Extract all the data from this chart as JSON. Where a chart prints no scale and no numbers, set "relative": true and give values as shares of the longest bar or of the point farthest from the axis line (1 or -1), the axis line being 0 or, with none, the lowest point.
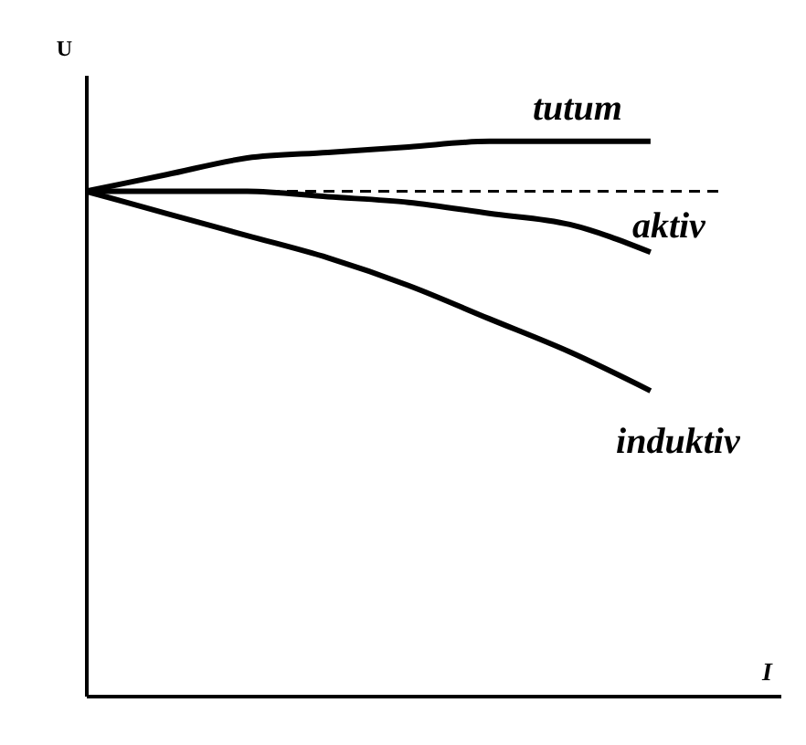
{
  "chart_data": {
    "type": "line",
    "relative": true,
    "xlabel": "I",
    "ylabel": "U",
    "categories": [
      null,
      null,
      null,
      null,
      null,
      null,
      null,
      null
    ],
    "line_style": "solid",
    "marker": "none",
    "grid": false,
    "series": [
      {
        "name": "tutum",
        "color": "#000000",
        "values": [
          0.91,
          0.94,
          0.97,
          0.98,
          0.99,
          1.0,
          1.0,
          1.0
        ]
      },
      {
        "name": "aktiv",
        "color": "#000000",
        "values": [
          0.91,
          0.91,
          0.91,
          0.9,
          0.89,
          0.87,
          0.85,
          0.8
        ]
      },
      {
        "name": "induktiv",
        "color": "#000000",
        "values": [
          0.91,
          0.87,
          0.83,
          0.79,
          0.74,
          0.68,
          0.62,
          0.55
        ]
      }
    ],
    "ref_lines": [
      {
        "axis": "y",
        "value": 0.91,
        "label": null,
        "color": "#000000",
        "line_style": "dashed"
      }
    ]
  }
}
